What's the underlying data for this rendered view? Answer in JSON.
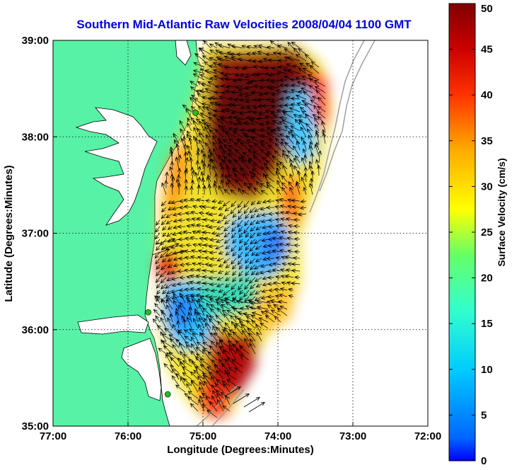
{
  "title": "Southern Mid-Atlantic Raw Velocities 2008/04/04 1100 GMT",
  "xlabel": "Longitude (Degrees:Minutes)",
  "ylabel": "Latitude (Degrees:Minutes)",
  "x_ticks": [
    "77:00",
    "76:00",
    "75:00",
    "74:00",
    "73:00",
    "72:00"
  ],
  "y_ticks": [
    "39:00",
    "38:00",
    "37:00",
    "36:00",
    "35:00"
  ],
  "colorbar": {
    "label": "Surface Velocity (cm/s)",
    "ticks": [
      "50",
      "45",
      "40",
      "35",
      "30",
      "25",
      "20",
      "15",
      "10",
      "5",
      "0"
    ],
    "range": [
      0,
      50
    ],
    "colormap": "jet"
  },
  "colors": {
    "title": "#0000dd",
    "land": "#57f2a6",
    "ocean": "#ffffff",
    "coastline": "#000000",
    "bathymetry": "#9a9a9a",
    "arrows": "#000000",
    "stations": "#22c022"
  },
  "map": {
    "lon_range": [
      -77,
      -72
    ],
    "lat_range": [
      35,
      39
    ],
    "grid": "dotted",
    "stations": [
      {
        "lon": -74.9,
        "lat": 39.03
      },
      {
        "lon": -75.1,
        "lat": 38.25
      },
      {
        "lon": -75.73,
        "lat": 36.18
      },
      {
        "lon": -75.47,
        "lat": 35.33
      }
    ]
  }
}
